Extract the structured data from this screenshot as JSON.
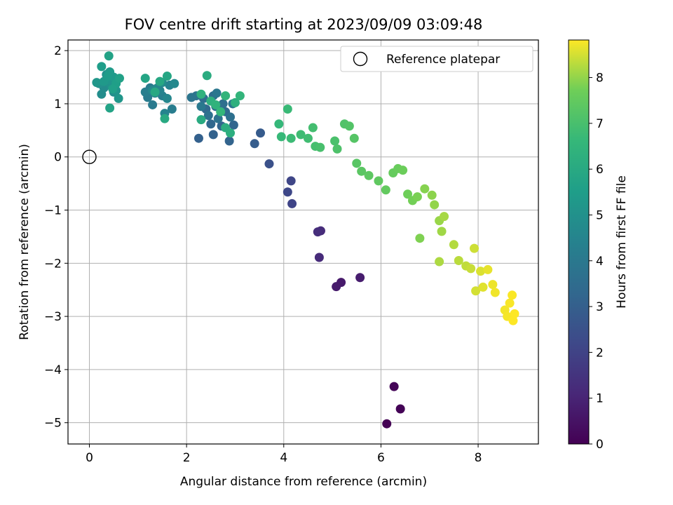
{
  "chart_data": {
    "type": "scatter",
    "title": "FOV centre drift starting at 2023/09/09 03:09:48",
    "xlabel": "Angular distance from reference (arcmin)",
    "ylabel": "Rotation from reference (arcmin)",
    "xlim": [
      -0.44,
      9.24
    ],
    "ylim": [
      -5.4,
      2.2
    ],
    "xticks": [
      0,
      2,
      4,
      6,
      8
    ],
    "yticks": [
      2,
      1,
      0,
      -1,
      -2,
      -3,
      -4,
      -5
    ],
    "grid": true,
    "legend": {
      "position": "top-right",
      "entries": [
        "Reference platepar"
      ]
    },
    "colorbar": {
      "label": "Hours from first FF file",
      "colormap": "viridis",
      "range": [
        0,
        8.82
      ],
      "ticks": [
        0,
        1,
        2,
        3,
        4,
        5,
        6,
        7,
        8
      ]
    },
    "reference": {
      "x": 0,
      "y": 0
    },
    "series": [
      {
        "points": [
          [
            6.12,
            -5.02,
            0.0
          ],
          [
            6.4,
            -4.74,
            0.05
          ],
          [
            6.27,
            -4.32,
            0.1
          ],
          [
            5.18,
            -2.36,
            0.7
          ],
          [
            5.08,
            -2.44,
            0.75
          ],
          [
            5.57,
            -2.27,
            0.8
          ],
          [
            4.73,
            -1.89,
            1.2
          ],
          [
            4.76,
            -1.39,
            1.25
          ],
          [
            4.7,
            -1.41,
            1.3
          ],
          [
            4.17,
            -0.88,
            2.05
          ],
          [
            4.15,
            -0.45,
            2.1
          ],
          [
            4.08,
            -0.66,
            2.15
          ],
          [
            3.7,
            -0.13,
            2.5
          ],
          [
            3.52,
            0.45,
            2.85
          ],
          [
            3.4,
            0.25,
            2.9
          ],
          [
            2.25,
            0.35,
            3.05
          ],
          [
            2.55,
            0.42,
            3.1
          ],
          [
            2.88,
            0.3,
            3.15
          ],
          [
            2.72,
            0.58,
            3.2
          ],
          [
            2.97,
            0.6,
            3.25
          ],
          [
            2.5,
            0.62,
            3.3
          ],
          [
            2.4,
            0.9,
            3.35
          ],
          [
            2.6,
            0.95,
            3.4
          ],
          [
            2.8,
            0.85,
            3.45
          ],
          [
            2.35,
            1.1,
            3.5
          ],
          [
            2.55,
            1.15,
            3.55
          ],
          [
            2.75,
            1.0,
            3.6
          ],
          [
            2.9,
            0.75,
            3.65
          ],
          [
            2.45,
            0.78,
            3.7
          ],
          [
            2.65,
            0.72,
            3.75
          ],
          [
            2.2,
            1.15,
            3.8
          ],
          [
            2.1,
            1.12,
            3.85
          ],
          [
            2.95,
            1.0,
            3.9
          ],
          [
            2.62,
            1.2,
            3.95
          ],
          [
            2.3,
            0.95,
            4.0
          ],
          [
            1.3,
            0.98,
            4.05
          ],
          [
            1.2,
            1.12,
            4.1
          ],
          [
            1.25,
            1.3,
            4.15
          ],
          [
            1.7,
            0.9,
            4.2
          ],
          [
            1.15,
            1.22,
            4.25
          ],
          [
            1.5,
            1.15,
            4.3
          ],
          [
            1.35,
            1.2,
            4.35
          ],
          [
            1.65,
            1.35,
            4.4
          ],
          [
            1.45,
            1.25,
            4.45
          ],
          [
            1.55,
            0.82,
            4.5
          ],
          [
            1.6,
            1.1,
            4.55
          ],
          [
            1.4,
            1.3,
            4.6
          ],
          [
            1.75,
            1.38,
            4.65
          ],
          [
            1.3,
            1.25,
            4.7
          ],
          [
            1.5,
            1.4,
            4.75
          ],
          [
            0.3,
            1.3,
            4.8
          ],
          [
            0.25,
            1.18,
            4.85
          ],
          [
            0.5,
            1.22,
            4.9
          ],
          [
            0.2,
            1.38,
            4.95
          ],
          [
            0.35,
            1.55,
            5.0
          ],
          [
            0.45,
            1.35,
            5.05
          ],
          [
            0.55,
            1.25,
            5.1
          ],
          [
            0.4,
            1.45,
            5.15
          ],
          [
            0.6,
            1.1,
            5.2
          ],
          [
            0.15,
            1.4,
            5.25
          ],
          [
            0.3,
            1.42,
            5.3
          ],
          [
            0.5,
            1.5,
            5.35
          ],
          [
            0.42,
            1.6,
            5.4
          ],
          [
            0.38,
            1.52,
            5.45
          ],
          [
            0.25,
            1.7,
            5.5
          ],
          [
            0.55,
            1.38,
            5.55
          ],
          [
            0.48,
            1.28,
            5.6
          ],
          [
            0.62,
            1.48,
            5.65
          ],
          [
            0.4,
            1.9,
            5.7
          ],
          [
            0.42,
            0.92,
            5.75
          ],
          [
            1.15,
            1.48,
            5.8
          ],
          [
            1.6,
            1.52,
            5.85
          ],
          [
            1.45,
            1.42,
            5.9
          ],
          [
            1.35,
            1.22,
            5.95
          ],
          [
            1.55,
            0.72,
            6.0
          ],
          [
            2.3,
            0.7,
            6.05
          ],
          [
            2.42,
            1.53,
            6.1
          ],
          [
            2.8,
            0.55,
            6.15
          ],
          [
            2.9,
            0.45,
            6.2
          ],
          [
            3.0,
            1.02,
            6.25
          ],
          [
            2.5,
            1.05,
            6.3
          ],
          [
            2.3,
            1.18,
            6.35
          ],
          [
            2.6,
            0.98,
            6.4
          ],
          [
            2.8,
            1.15,
            6.45
          ],
          [
            3.1,
            1.15,
            6.5
          ],
          [
            2.7,
            0.85,
            6.55
          ],
          [
            3.9,
            0.62,
            6.6
          ],
          [
            3.95,
            0.38,
            6.65
          ],
          [
            4.08,
            0.9,
            6.7
          ],
          [
            4.15,
            0.35,
            6.75
          ],
          [
            4.35,
            0.42,
            6.8
          ],
          [
            4.5,
            0.35,
            6.85
          ],
          [
            4.6,
            0.55,
            6.9
          ],
          [
            4.65,
            0.2,
            6.95
          ],
          [
            4.75,
            0.18,
            7.0
          ],
          [
            5.05,
            0.3,
            7.05
          ],
          [
            5.1,
            0.15,
            7.1
          ],
          [
            5.25,
            0.62,
            7.15
          ],
          [
            5.35,
            0.58,
            7.2
          ],
          [
            5.45,
            0.35,
            7.25
          ],
          [
            5.5,
            -0.12,
            7.3
          ],
          [
            5.6,
            -0.27,
            7.35
          ],
          [
            5.75,
            -0.35,
            7.4
          ],
          [
            5.95,
            -0.45,
            7.45
          ],
          [
            6.1,
            -0.62,
            7.5
          ],
          [
            6.25,
            -0.3,
            7.55
          ],
          [
            6.35,
            -0.22,
            7.6
          ],
          [
            6.45,
            -0.25,
            7.65
          ],
          [
            6.55,
            -0.7,
            7.7
          ],
          [
            6.65,
            -0.82,
            7.75
          ],
          [
            6.75,
            -0.75,
            7.8
          ],
          [
            6.8,
            -1.53,
            7.85
          ],
          [
            6.9,
            -0.6,
            7.9
          ],
          [
            7.05,
            -0.72,
            7.95
          ],
          [
            7.1,
            -0.9,
            8.0
          ],
          [
            7.2,
            -1.2,
            8.05
          ],
          [
            7.25,
            -1.4,
            8.1
          ],
          [
            7.3,
            -1.12,
            8.15
          ],
          [
            7.2,
            -1.97,
            8.2
          ],
          [
            7.5,
            -1.65,
            8.25
          ],
          [
            7.6,
            -1.95,
            8.3
          ],
          [
            7.75,
            -2.05,
            8.35
          ],
          [
            7.85,
            -2.1,
            8.4
          ],
          [
            7.92,
            -1.72,
            8.45
          ],
          [
            7.95,
            -2.52,
            8.5
          ],
          [
            8.05,
            -2.15,
            8.55
          ],
          [
            8.1,
            -2.45,
            8.6
          ],
          [
            8.2,
            -2.12,
            8.65
          ],
          [
            8.3,
            -2.4,
            8.7
          ],
          [
            8.35,
            -2.55,
            8.72
          ],
          [
            8.55,
            -2.88,
            8.74
          ],
          [
            8.6,
            -3.0,
            8.76
          ],
          [
            8.65,
            -2.75,
            8.78
          ],
          [
            8.7,
            -2.6,
            8.8
          ],
          [
            8.75,
            -2.95,
            8.82
          ],
          [
            8.72,
            -3.08,
            8.82
          ]
        ]
      }
    ]
  }
}
